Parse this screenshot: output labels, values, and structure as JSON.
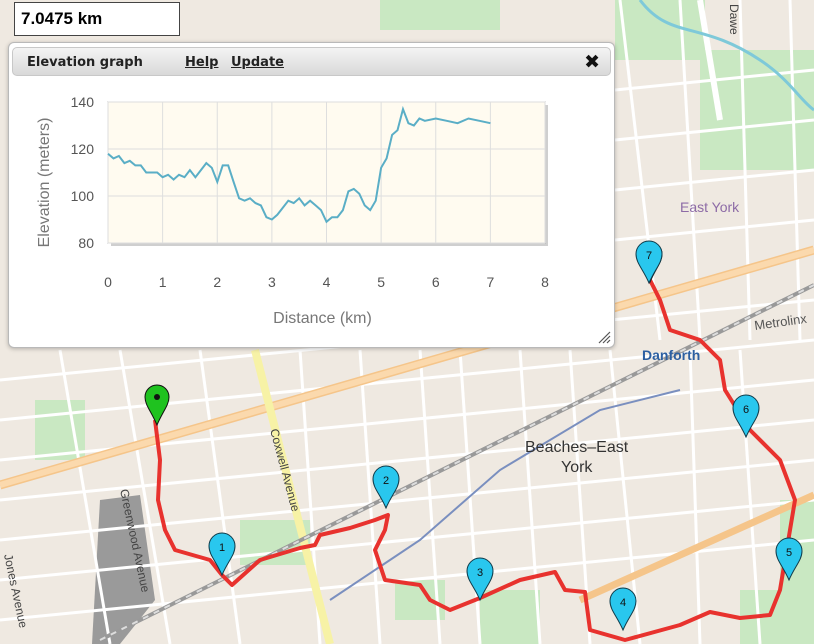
{
  "distance_readout": "7.0475 km",
  "elevation_panel": {
    "title": "Elevation graph",
    "help_label": "Help",
    "update_label": "Update",
    "close_icon": "close-icon"
  },
  "chart_data": {
    "type": "line",
    "xlabel": "Distance (km)",
    "ylabel": "Elevation (meters)",
    "xlim": [
      0,
      8
    ],
    "ylim": [
      80,
      140
    ],
    "x_ticks": [
      "0",
      "1",
      "2",
      "3",
      "4",
      "5",
      "6",
      "7",
      "8"
    ],
    "y_ticks": [
      "80",
      "100",
      "120",
      "140"
    ],
    "grid": true,
    "line_color": "#5aaec6",
    "series": [
      {
        "x": [
          0,
          0.1,
          0.2,
          0.3,
          0.4,
          0.5,
          0.6,
          0.7,
          0.8,
          0.9,
          1.0,
          1.1,
          1.2,
          1.3,
          1.4,
          1.5,
          1.6,
          1.7,
          1.8,
          1.9,
          2.0,
          2.1,
          2.2,
          2.3,
          2.4,
          2.5,
          2.6,
          2.7,
          2.8,
          2.9,
          3.0,
          3.1,
          3.2,
          3.3,
          3.4,
          3.5,
          3.6,
          3.7,
          3.8,
          3.9,
          4.0,
          4.1,
          4.2,
          4.3,
          4.4,
          4.5,
          4.6,
          4.7,
          4.8,
          4.9,
          5.0,
          5.1,
          5.2,
          5.3,
          5.4,
          5.5,
          5.6,
          5.7,
          5.8,
          6.0,
          6.2,
          6.4,
          6.6,
          6.8,
          7.0
        ],
        "y": [
          118,
          116,
          117,
          114,
          115,
          113,
          113,
          110,
          110,
          110,
          108,
          109,
          107,
          109,
          108,
          111,
          108,
          111,
          114,
          112,
          106,
          113,
          113,
          106,
          99,
          98,
          99,
          97,
          96,
          91,
          90,
          92,
          95,
          98,
          97,
          99,
          96,
          98,
          96,
          94,
          89,
          91,
          91,
          94,
          102,
          103,
          101,
          96,
          94,
          98,
          112,
          116,
          126,
          128,
          137,
          131,
          130,
          133,
          132,
          133,
          132,
          131,
          133,
          132,
          131
        ]
      }
    ]
  },
  "map": {
    "labels": {
      "danforth": "Danforth",
      "beaches_east_york": [
        "Beaches–East",
        "York"
      ],
      "east_york": "East York",
      "metrolinx": "Metrolinx",
      "coxwell_avenue": "Coxwell Avenue",
      "greenwood_avenue": "Greenwood Avenue",
      "jones_avenue": "Jones Avenue",
      "dawes": "Dawe"
    },
    "waypoints": [
      "1",
      "2",
      "3",
      "4",
      "5",
      "6",
      "7"
    ],
    "route_color": "#e8322e",
    "waypoint_color": "#29c7ee",
    "start_color": "#1fc21f"
  }
}
